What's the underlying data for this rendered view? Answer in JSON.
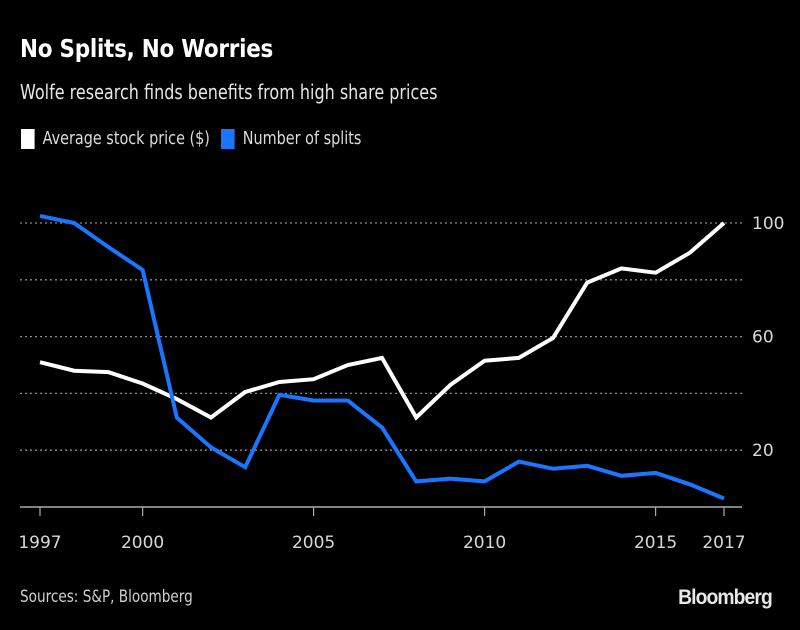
{
  "chart_data": {
    "type": "line",
    "title": "No Splits, No Worries",
    "subtitle": "Wolfe research finds benefits from high share prices",
    "xlabel": "",
    "ylabel": "",
    "x": [
      1997,
      1998,
      1999,
      2000,
      2001,
      2002,
      2003,
      2004,
      2005,
      2006,
      2007,
      2008,
      2009,
      2010,
      2011,
      2012,
      2013,
      2014,
      2015,
      2016,
      2017
    ],
    "xlim": [
      1997,
      2017.5
    ],
    "ylim": [
      0,
      100
    ],
    "x_ticks": [
      1997,
      2000,
      2005,
      2010,
      2015,
      2017
    ],
    "y_ticks": [
      20,
      40,
      60,
      80,
      100
    ],
    "y_tick_labels": [
      {
        "value": 20,
        "label": "20"
      },
      {
        "value": 60,
        "label": "60"
      },
      {
        "value": 100,
        "label": "100"
      }
    ],
    "y_axis_position": "right",
    "grid": true,
    "grid_style": "dotted horizontal",
    "legend_position": "top-left",
    "series": [
      {
        "name": "Average stock price ($)",
        "color": "#ffffff",
        "values": [
          51,
          48,
          47.5,
          43.5,
          38,
          31.5,
          40.5,
          44,
          45,
          50,
          52.5,
          31.5,
          43,
          51.5,
          52.5,
          59.5,
          79,
          84,
          82.5,
          89.5,
          100
        ]
      },
      {
        "name": "Number of splits",
        "color": "#1a75ff",
        "values": [
          102.5,
          100,
          91.5,
          83.5,
          31.5,
          21,
          14,
          39.5,
          37.5,
          37.5,
          28,
          9,
          10,
          9,
          16,
          13.5,
          14.5,
          11,
          12,
          8,
          3
        ]
      }
    ],
    "source": "Sources: S&P, Bloomberg",
    "brand": "Bloomberg"
  }
}
